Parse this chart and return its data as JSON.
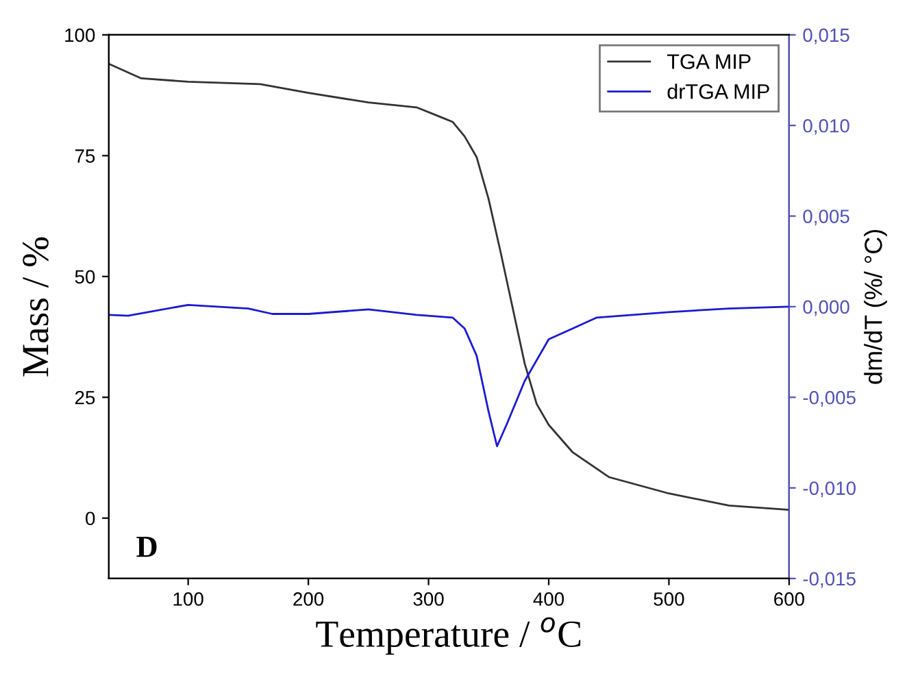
{
  "chart_data": {
    "type": "line",
    "xlabel": "Temperature / $^{o}$C",
    "ylabel": "Mass / %",
    "y2label": "dm/dT (%/ °C)",
    "xlim": [
      34,
      600
    ],
    "xticks": [
      100,
      200,
      300,
      400,
      500,
      600
    ],
    "ylim": [
      -12.5,
      100
    ],
    "yticks": [
      0,
      25,
      50,
      75,
      100
    ],
    "y2lim": [
      -0.015,
      0.015
    ],
    "y2ticks": [
      {
        "value": -0.015,
        "label": "-0,015"
      },
      {
        "value": -0.01,
        "label": "-0,010"
      },
      {
        "value": -0.005,
        "label": "-0,005"
      },
      {
        "value": 0,
        "label": "0,000"
      },
      {
        "value": 0.005,
        "label": "0,005"
      },
      {
        "value": 0.01,
        "label": "0,010"
      },
      {
        "value": 0.015,
        "label": "0,015"
      }
    ],
    "legend": "top right",
    "grid": false,
    "annotations": [
      "D"
    ],
    "series": [
      {
        "name": "TGA MIP",
        "color": "#333333",
        "x": [
          34,
          61,
          100,
          160,
          200,
          250,
          290,
          310,
          320,
          330,
          340,
          350,
          360,
          370,
          380,
          390,
          400,
          420,
          450,
          500,
          550,
          600
        ],
        "values": [
          94,
          91,
          90.3,
          89.8,
          88,
          86,
          85,
          83,
          82,
          79,
          74.7,
          66,
          55,
          43.5,
          32,
          23.6,
          19.3,
          13.6,
          8.5,
          5.1,
          2.6,
          1.7
        ]
      },
      {
        "name": "drTGA MIP",
        "color": "#1a1ad0",
        "axis": "y2",
        "x": [
          34,
          50,
          100,
          150,
          170,
          200,
          250,
          290,
          320,
          330,
          340,
          350,
          357,
          365,
          380,
          400,
          420,
          440,
          500,
          550,
          600
        ],
        "values": [
          -0.00045,
          -0.0005,
          0.0001,
          -0.0001,
          -0.0004,
          -0.0004,
          -0.00015,
          -0.00045,
          -0.0006,
          -0.0012,
          -0.0027,
          -0.0058,
          -0.0077,
          -0.0065,
          -0.0041,
          -0.0018,
          -0.0012,
          -0.0006,
          -0.0003,
          -0.0001,
          0
        ]
      }
    ]
  }
}
